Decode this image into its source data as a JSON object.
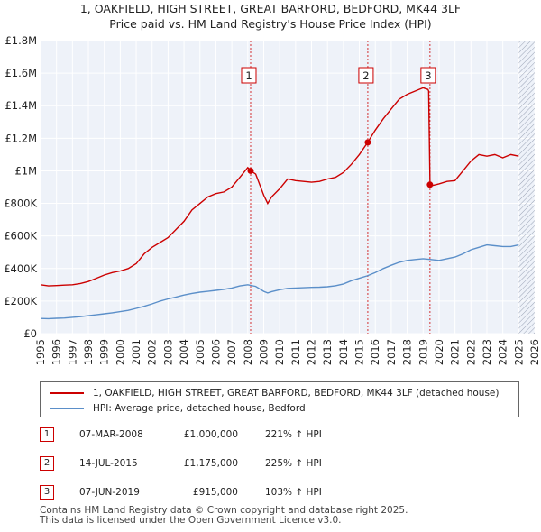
{
  "chart_data": {
    "type": "line",
    "title": "1, OAKFIELD, HIGH STREET, GREAT BARFORD, BEDFORD, MK44 3LF",
    "subtitle": "Price paid vs. HM Land Registry's House Price Index (HPI)",
    "xlabel": "",
    "ylabel": "",
    "xlim": [
      1995,
      2026
    ],
    "ylim": [
      0,
      1800000
    ],
    "x_ticks": [
      "1995",
      "1996",
      "1997",
      "1998",
      "1999",
      "2000",
      "2001",
      "2002",
      "2003",
      "2004",
      "2005",
      "2006",
      "2007",
      "2008",
      "2009",
      "2010",
      "2011",
      "2012",
      "2013",
      "2014",
      "2015",
      "2016",
      "2017",
      "2018",
      "2019",
      "2020",
      "2021",
      "2022",
      "2023",
      "2024",
      "2025",
      "2026"
    ],
    "y_ticks": [
      {
        "value": 0,
        "label": "£0"
      },
      {
        "value": 200000,
        "label": "£200K"
      },
      {
        "value": 400000,
        "label": "£400K"
      },
      {
        "value": 600000,
        "label": "£600K"
      },
      {
        "value": 800000,
        "label": "£800K"
      },
      {
        "value": 1000000,
        "label": "£1M"
      },
      {
        "value": 1200000,
        "label": "£1.2M"
      },
      {
        "value": 1400000,
        "label": "£1.4M"
      },
      {
        "value": 1600000,
        "label": "£1.6M"
      },
      {
        "value": 1800000,
        "label": "£1.8M"
      }
    ],
    "grid": true,
    "future_hatch_from": 2025.0,
    "series": [
      {
        "name": "1, OAKFIELD, HIGH STREET, GREAT BARFORD, BEDFORD, MK44 3LF (detached house)",
        "color": "#cc0000",
        "x": [
          1995.0,
          1995.5,
          1996.0,
          1996.5,
          1997.0,
          1997.5,
          1998.0,
          1998.5,
          1999.0,
          1999.5,
          2000.0,
          2000.5,
          2001.0,
          2001.5,
          2002.0,
          2002.5,
          2003.0,
          2003.5,
          2004.0,
          2004.5,
          2005.0,
          2005.5,
          2006.0,
          2006.5,
          2007.0,
          2007.5,
          2008.0,
          2008.18,
          2008.5,
          2009.0,
          2009.25,
          2009.5,
          2010.0,
          2010.5,
          2011.0,
          2011.5,
          2012.0,
          2012.5,
          2013.0,
          2013.5,
          2014.0,
          2014.5,
          2015.0,
          2015.53,
          2016.0,
          2016.5,
          2017.0,
          2017.5,
          2018.0,
          2018.5,
          2019.0,
          2019.3,
          2019.35,
          2019.43,
          2019.6,
          2020.0,
          2020.5,
          2021.0,
          2021.5,
          2022.0,
          2022.5,
          2023.0,
          2023.5,
          2024.0,
          2024.5,
          2025.0
        ],
        "values": [
          300000,
          293000,
          295000,
          298000,
          300000,
          308000,
          320000,
          340000,
          360000,
          375000,
          385000,
          400000,
          430000,
          490000,
          530000,
          560000,
          590000,
          640000,
          690000,
          760000,
          800000,
          840000,
          860000,
          870000,
          900000,
          960000,
          1020000,
          1000000,
          980000,
          850000,
          800000,
          840000,
          890000,
          950000,
          940000,
          935000,
          930000,
          935000,
          950000,
          960000,
          990000,
          1040000,
          1100000,
          1175000,
          1250000,
          1320000,
          1380000,
          1440000,
          1470000,
          1490000,
          1510000,
          1500000,
          1490000,
          915000,
          910000,
          920000,
          935000,
          940000,
          1000000,
          1060000,
          1100000,
          1090000,
          1100000,
          1080000,
          1100000,
          1090000
        ]
      },
      {
        "name": "HPI: Average price, detached house, Bedford",
        "color": "#5b8fc9",
        "x": [
          1995.0,
          1995.5,
          1996.0,
          1996.5,
          1997.0,
          1997.5,
          1998.0,
          1998.5,
          1999.0,
          1999.5,
          2000.0,
          2000.5,
          2001.0,
          2001.5,
          2002.0,
          2002.5,
          2003.0,
          2003.5,
          2004.0,
          2004.5,
          2005.0,
          2005.5,
          2006.0,
          2006.5,
          2007.0,
          2007.5,
          2008.0,
          2008.5,
          2009.0,
          2009.25,
          2009.5,
          2010.0,
          2010.5,
          2011.0,
          2011.5,
          2012.0,
          2012.5,
          2013.0,
          2013.5,
          2014.0,
          2014.5,
          2015.0,
          2015.5,
          2016.0,
          2016.5,
          2017.0,
          2017.5,
          2018.0,
          2018.5,
          2019.0,
          2019.5,
          2020.0,
          2020.5,
          2021.0,
          2021.5,
          2022.0,
          2022.5,
          2023.0,
          2023.5,
          2024.0,
          2024.5,
          2025.0
        ],
        "values": [
          93000,
          92000,
          94000,
          96000,
          100000,
          104000,
          110000,
          116000,
          122000,
          128000,
          135000,
          143000,
          155000,
          168000,
          183000,
          200000,
          213000,
          225000,
          237000,
          247000,
          255000,
          260000,
          266000,
          272000,
          280000,
          293000,
          300000,
          290000,
          260000,
          250000,
          258000,
          270000,
          278000,
          280000,
          282000,
          284000,
          285000,
          288000,
          294000,
          305000,
          325000,
          340000,
          355000,
          375000,
          400000,
          420000,
          438000,
          450000,
          455000,
          460000,
          455000,
          450000,
          460000,
          470000,
          490000,
          515000,
          530000,
          545000,
          540000,
          535000,
          535000,
          545000
        ]
      }
    ],
    "markers": [
      {
        "label": "1",
        "x": 2008.18,
        "value": 1000000
      },
      {
        "label": "2",
        "x": 2015.53,
        "value": 1175000
      },
      {
        "label": "3",
        "x": 2019.43,
        "value": 915000
      }
    ]
  },
  "legend": {
    "property_label": "1, OAKFIELD, HIGH STREET, GREAT BARFORD, BEDFORD, MK44 3LF (detached house)",
    "hpi_label": "HPI: Average price, detached house, Bedford"
  },
  "sales": [
    {
      "num": "1",
      "date": "07-MAR-2008",
      "price": "£1,000,000",
      "hpi": "221% ↑ HPI"
    },
    {
      "num": "2",
      "date": "14-JUL-2015",
      "price": "£1,175,000",
      "hpi": "225% ↑ HPI"
    },
    {
      "num": "3",
      "date": "07-JUN-2019",
      "price": "£915,000",
      "hpi": "103% ↑ HPI"
    }
  ],
  "footer": {
    "line1": "Contains HM Land Registry data © Crown copyright and database right 2025.",
    "line2": "This data is licensed under the Open Government Licence v3.0."
  },
  "colors": {
    "property": "#cc0000",
    "hpi": "#5b8fc9",
    "plot_bg": "#eef2f9",
    "grid": "#ffffff",
    "marker_box": "#cc0000"
  }
}
